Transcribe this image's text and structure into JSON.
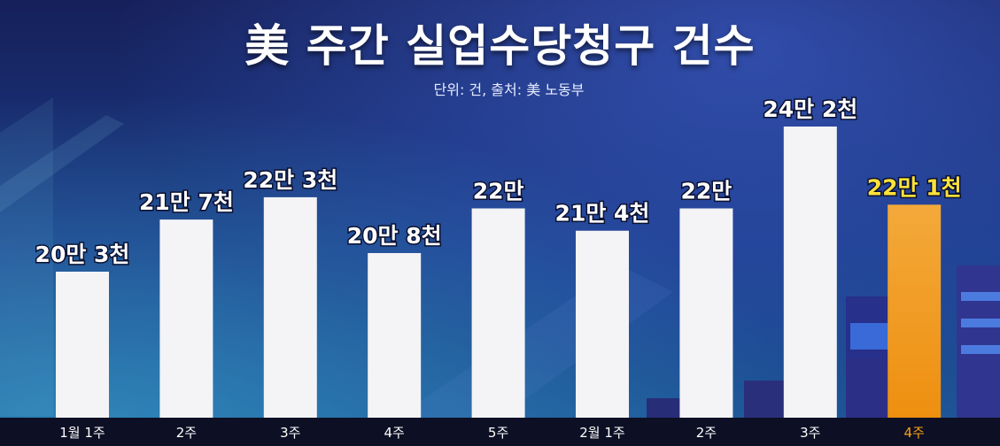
{
  "header": {
    "title": "美 주간 실업수당청구 건수",
    "subtitle": "단위: 건, 출처: 美 노동부"
  },
  "colors": {
    "bar": "#f4f4f6",
    "highlight_bar": "#f5a219",
    "label": "#ffffff",
    "highlight_label": "#ffe23a",
    "axis_band": "#0d0f24",
    "tick": "#ffffff",
    "highlight_tick": "#f5a219"
  },
  "chart_data": {
    "type": "bar",
    "title": "美 주간 실업수당청구 건수",
    "subtitle": "단위: 건, 출처: 美 노동부",
    "categories": [
      "1월 1주",
      "2주",
      "3주",
      "4주",
      "5주",
      "2월 1주",
      "2주",
      "3주",
      "4주"
    ],
    "values": [
      203000,
      217000,
      223000,
      208000,
      220000,
      214000,
      220000,
      242000,
      221000
    ],
    "data_labels": [
      "20만 3천",
      "21만 7천",
      "22만 3천",
      "20만 8천",
      "22만",
      "21만 4천",
      "22만",
      "24만 2천",
      "22만 1천"
    ],
    "highlight_index": 8,
    "xlabel": "",
    "ylabel": "",
    "grid": false,
    "legend": "none"
  }
}
